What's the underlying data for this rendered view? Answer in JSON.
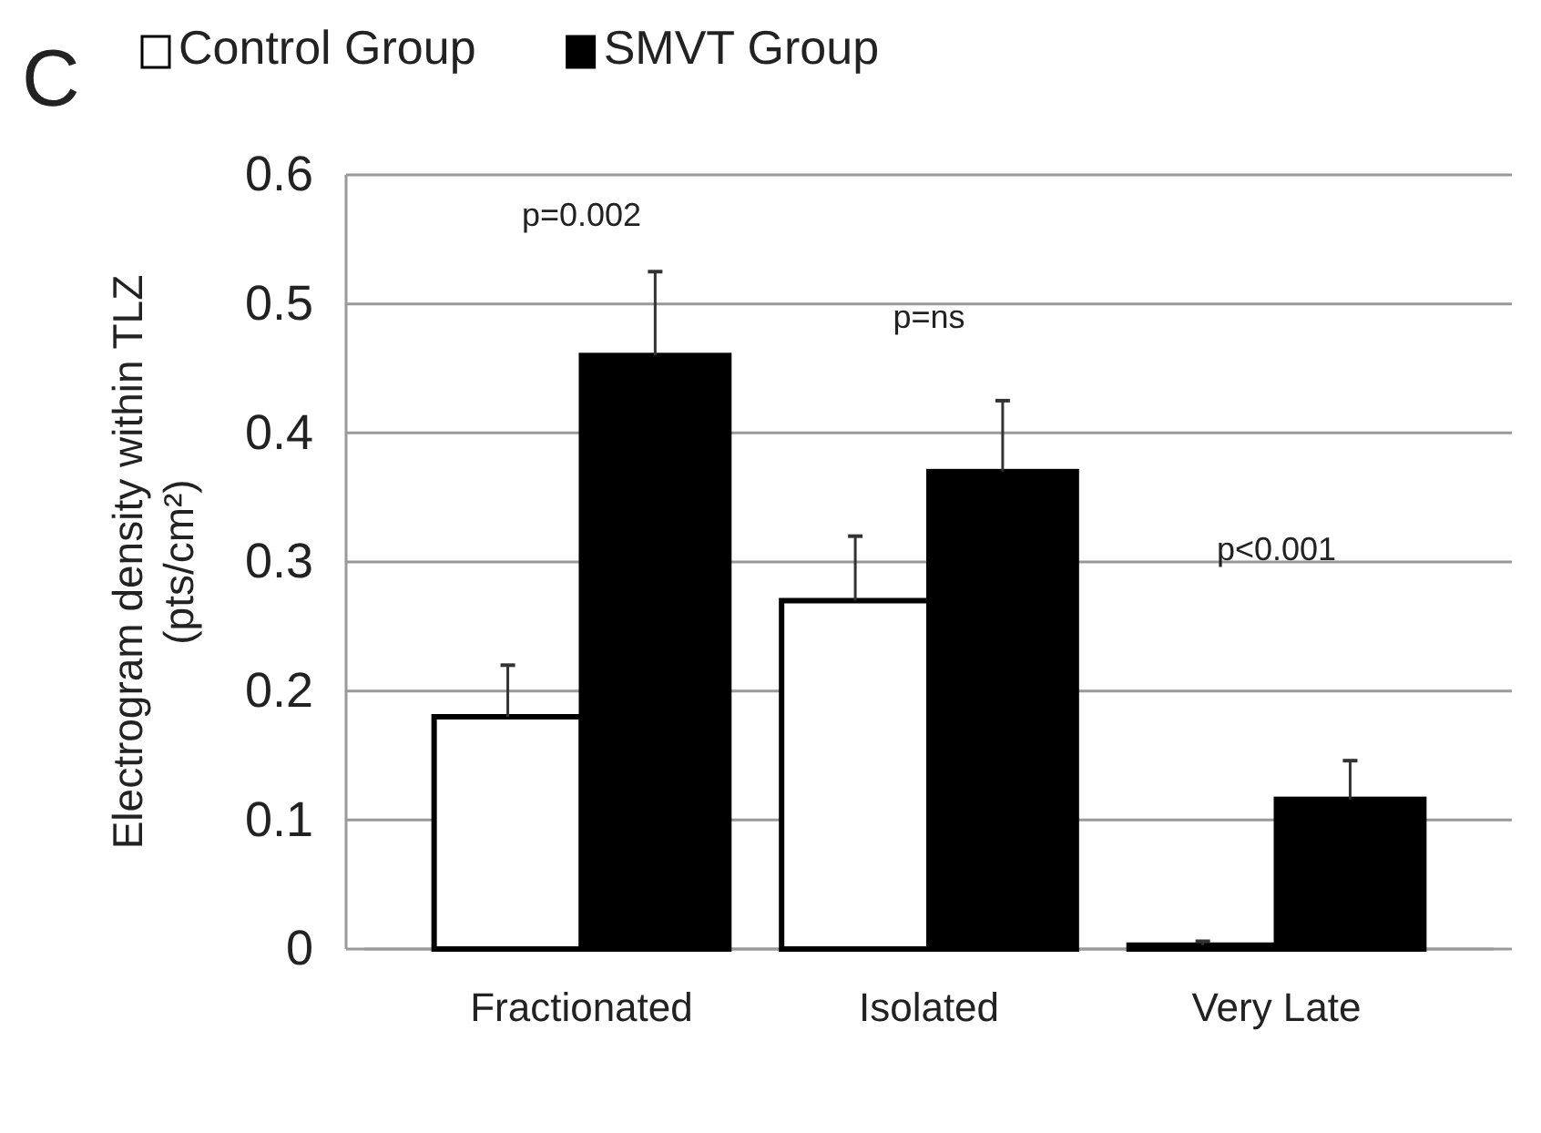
{
  "chart_data": {
    "type": "bar",
    "title": "C",
    "ylabel": "Electrogram density within TLZ\n(pts/cm²)",
    "categories": [
      "Fractionated",
      "Isolated",
      "Very Late"
    ],
    "series": [
      {
        "name": "Control Group",
        "color": "#ffffff",
        "values": [
          0.18,
          0.27,
          0.003
        ],
        "errors": [
          [
            0.18,
            0.22
          ],
          [
            0.27,
            0.32
          ],
          [
            0.003,
            0.006
          ]
        ]
      },
      {
        "name": "SMVT Group",
        "color": "#000000",
        "values": [
          0.46,
          0.37,
          0.116
        ],
        "errors": [
          [
            0.46,
            0.525
          ],
          [
            0.37,
            0.425
          ],
          [
            0.116,
            0.146
          ]
        ]
      }
    ],
    "ylim": [
      0,
      0.6
    ],
    "yticks": [
      {
        "value": 0,
        "label": "0"
      },
      0.1,
      0.2,
      0.3,
      0.4,
      0.5,
      0.6
    ],
    "grid": "y",
    "legend": "top",
    "annotations": [
      "p=0.002",
      "p=ns",
      "p<0.001"
    ]
  }
}
